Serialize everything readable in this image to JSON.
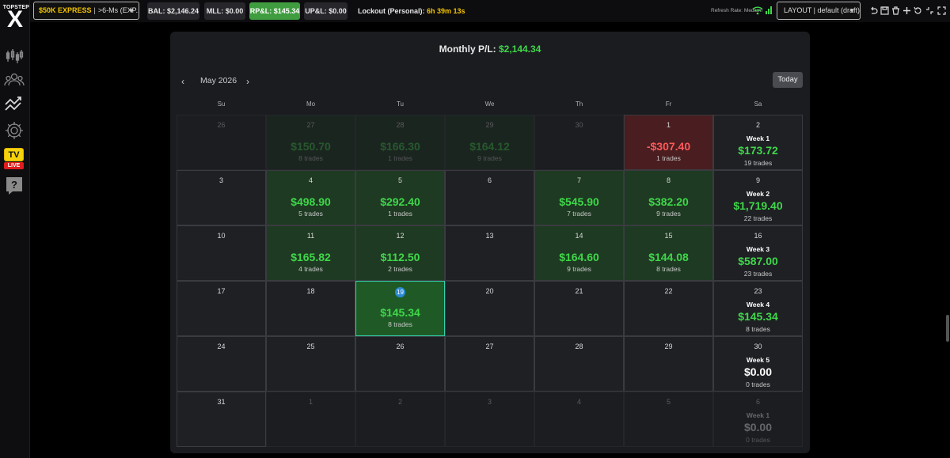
{
  "logo": {
    "small": "TOPSTEP",
    "big": "X"
  },
  "sidebar": {
    "icons": [
      "chart-icon",
      "users-icon",
      "trending-icon",
      "gear-icon",
      "tv-live-icon",
      "help-icon"
    ],
    "tv_label": "TV",
    "live_label": "LIVE",
    "help_glyph": "?"
  },
  "topbar": {
    "account_name": "$50K EXPRESS",
    "account_sep": "|",
    "account_detail": ">6-Ms (EXP...",
    "balance": "BAL: $2,146.24",
    "mll": "MLL: $0.00",
    "rpl": "RP&L: $145.34",
    "upl": "UP&L: $0.00",
    "lockout_label": "Lockout (Personal):",
    "lockout_time": "6h 39m 13s",
    "refresh_rate": "Refresh Rate: Medium",
    "layout": "LAYOUT | default (draft)"
  },
  "colors": {
    "profit": "#3fd74a",
    "loss": "#ff5a5a",
    "accent": "#f5c400",
    "selected": "#36d0b0"
  },
  "calendar": {
    "monthly_label": "Monthly P/L:",
    "monthly_value": "$2,144.34",
    "month": "May 2026",
    "prev_glyph": "‹",
    "next_glyph": "›",
    "today_label": "Today",
    "weekdays": [
      "Su",
      "Mo",
      "Tu",
      "We",
      "Th",
      "Fr",
      "Sa"
    ],
    "weeks": [
      {
        "days": [
          {
            "day": "26",
            "outside": true,
            "status": "none"
          },
          {
            "day": "27",
            "outside": true,
            "status": "profit",
            "amount": "$150.70",
            "trades": "8 trades"
          },
          {
            "day": "28",
            "outside": true,
            "status": "profit",
            "amount": "$166.30",
            "trades": "1 trades"
          },
          {
            "day": "29",
            "outside": true,
            "status": "profit",
            "amount": "$164.12",
            "trades": "9 trades"
          },
          {
            "day": "30",
            "outside": true,
            "status": "none"
          },
          {
            "day": "1",
            "outside": false,
            "status": "loss",
            "amount": "-$307.40",
            "trades": "1 trades"
          }
        ],
        "summary": {
          "day": "2",
          "label": "Week 1",
          "amount": "$173.72",
          "trades": "19 trades",
          "outside": false,
          "zero": false
        }
      },
      {
        "days": [
          {
            "day": "3",
            "outside": false,
            "status": "none"
          },
          {
            "day": "4",
            "outside": false,
            "status": "profit",
            "amount": "$498.90",
            "trades": "5 trades"
          },
          {
            "day": "5",
            "outside": false,
            "status": "profit",
            "amount": "$292.40",
            "trades": "1 trades"
          },
          {
            "day": "6",
            "outside": false,
            "status": "none"
          },
          {
            "day": "7",
            "outside": false,
            "status": "profit",
            "amount": "$545.90",
            "trades": "7 trades"
          },
          {
            "day": "8",
            "outside": false,
            "status": "profit",
            "amount": "$382.20",
            "trades": "9 trades"
          }
        ],
        "summary": {
          "day": "9",
          "label": "Week 2",
          "amount": "$1,719.40",
          "trades": "22 trades",
          "outside": false,
          "zero": false
        }
      },
      {
        "days": [
          {
            "day": "10",
            "outside": false,
            "status": "none"
          },
          {
            "day": "11",
            "outside": false,
            "status": "profit",
            "amount": "$165.82",
            "trades": "4 trades"
          },
          {
            "day": "12",
            "outside": false,
            "status": "profit",
            "amount": "$112.50",
            "trades": "2 trades"
          },
          {
            "day": "13",
            "outside": false,
            "status": "none"
          },
          {
            "day": "14",
            "outside": false,
            "status": "profit",
            "amount": "$164.60",
            "trades": "9 trades"
          },
          {
            "day": "15",
            "outside": false,
            "status": "profit",
            "amount": "$144.08",
            "trades": "8 trades"
          }
        ],
        "summary": {
          "day": "16",
          "label": "Week 3",
          "amount": "$587.00",
          "trades": "23 trades",
          "outside": false,
          "zero": false
        }
      },
      {
        "days": [
          {
            "day": "17",
            "outside": false,
            "status": "none"
          },
          {
            "day": "18",
            "outside": false,
            "status": "none"
          },
          {
            "day": "19",
            "outside": false,
            "status": "profit",
            "amount": "$145.34",
            "trades": "8 trades",
            "today": true
          },
          {
            "day": "20",
            "outside": false,
            "status": "none"
          },
          {
            "day": "21",
            "outside": false,
            "status": "none"
          },
          {
            "day": "22",
            "outside": false,
            "status": "none"
          }
        ],
        "summary": {
          "day": "23",
          "label": "Week 4",
          "amount": "$145.34",
          "trades": "8 trades",
          "outside": false,
          "zero": false
        }
      },
      {
        "days": [
          {
            "day": "24",
            "outside": false,
            "status": "none"
          },
          {
            "day": "25",
            "outside": false,
            "status": "none"
          },
          {
            "day": "26",
            "outside": false,
            "status": "none"
          },
          {
            "day": "27",
            "outside": false,
            "status": "none"
          },
          {
            "day": "28",
            "outside": false,
            "status": "none"
          },
          {
            "day": "29",
            "outside": false,
            "status": "none"
          }
        ],
        "summary": {
          "day": "30",
          "label": "Week 5",
          "amount": "$0.00",
          "trades": "0 trades",
          "outside": false,
          "zero": true
        }
      },
      {
        "days": [
          {
            "day": "31",
            "outside": false,
            "status": "none"
          },
          {
            "day": "1",
            "outside": true,
            "status": "none"
          },
          {
            "day": "2",
            "outside": true,
            "status": "none"
          },
          {
            "day": "3",
            "outside": true,
            "status": "none"
          },
          {
            "day": "4",
            "outside": true,
            "status": "none"
          },
          {
            "day": "5",
            "outside": true,
            "status": "none"
          }
        ],
        "summary": {
          "day": "6",
          "label": "Week 1",
          "amount": "$0.00",
          "trades": "0 trades",
          "outside": true,
          "zero": true
        }
      }
    ]
  }
}
